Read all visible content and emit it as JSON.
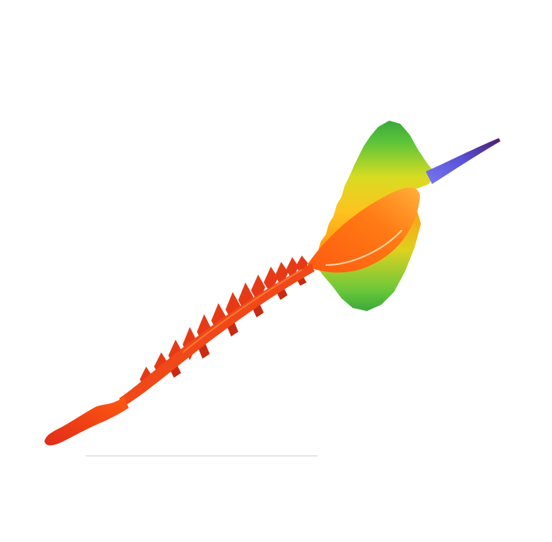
{
  "image": {
    "subject": "rainbow-helix-render",
    "background": "#ffffff",
    "colors": {
      "red": "#e8361a",
      "orange": "#ff6a10",
      "amber": "#ffb02a",
      "yellow": "#e6d81e",
      "green": "#5cc43a",
      "blue": "#6a62e0",
      "violet": "#5a2a8c",
      "baseline": "#d2d2d2"
    }
  }
}
